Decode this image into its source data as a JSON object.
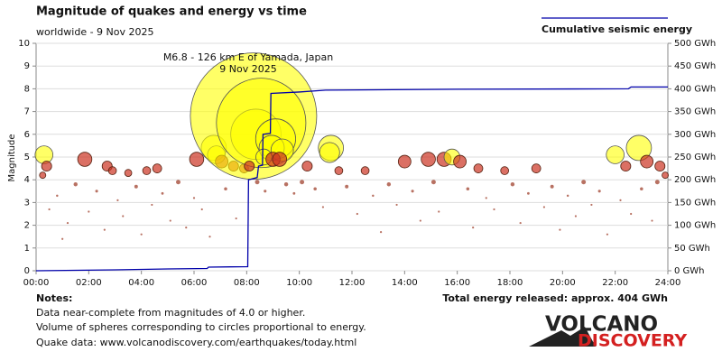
{
  "chart_data": {
    "type": "scatter",
    "title": "Magnitude of quakes and energy vs time",
    "subtitle": "worldwide -  9 Nov 2025",
    "ylabel": "Magnitude",
    "annotation": [
      "M6.8 - 126 km E of Yamada, Japan",
      "9 Nov 2025"
    ],
    "total": "Total energy released: approx. 404 GWh",
    "grid": true,
    "xlim": [
      0,
      24
    ],
    "xticks": [
      {
        "value": 0,
        "label": "00:00"
      },
      {
        "value": 2,
        "label": "02:00"
      },
      {
        "value": 4,
        "label": "04:00"
      },
      {
        "value": 6,
        "label": "06:00"
      },
      {
        "value": 8,
        "label": "08:00"
      },
      {
        "value": 10,
        "label": "10:00"
      },
      {
        "value": 12,
        "label": "12:00"
      },
      {
        "value": 14,
        "label": "14:00"
      },
      {
        "value": 16,
        "label": "16:00"
      },
      {
        "value": 18,
        "label": "18:00"
      },
      {
        "value": 20,
        "label": "20:00"
      },
      {
        "value": 22,
        "label": "22:00"
      },
      {
        "value": 24,
        "label": "24:00"
      }
    ],
    "ylim": [
      0,
      10
    ],
    "yticks": [
      0,
      1,
      2,
      3,
      4,
      5,
      6,
      7,
      8,
      9,
      10
    ],
    "y2lim": [
      0,
      500
    ],
    "y2ticks": [
      {
        "value": 0,
        "label": "0 GWh"
      },
      {
        "value": 50,
        "label": "50 GWh"
      },
      {
        "value": 100,
        "label": "100 GWh"
      },
      {
        "value": 150,
        "label": "150 GWh"
      },
      {
        "value": 200,
        "label": "200 GWh"
      },
      {
        "value": 250,
        "label": "250 GWh"
      },
      {
        "value": 300,
        "label": "300 GWh"
      },
      {
        "value": 350,
        "label": "350 GWh"
      },
      {
        "value": 400,
        "label": "400 GWh"
      },
      {
        "value": 450,
        "label": "450 GWh"
      },
      {
        "value": 500,
        "label": "500 GWh"
      }
    ],
    "x": [
      0.3,
      0.4,
      0.25,
      1.85,
      2.7,
      2.9,
      3.5,
      4.2,
      4.6,
      6.1,
      6.75,
      6.85,
      7.05,
      7.5,
      7.9,
      8.26,
      8.35,
      8.55,
      9.1,
      8.95,
      9.35,
      8.65,
      8.1,
      9.0,
      9.25,
      11.2,
      11.15,
      10.3,
      11.5,
      12.5,
      14.0,
      14.9,
      15.5,
      15.8,
      16.1,
      16.8,
      17.8,
      19.0,
      22.0,
      22.4,
      22.9,
      23.2,
      23.7,
      23.9,
      0.8,
      1.2,
      1.5,
      2.0,
      2.3,
      2.6,
      3.1,
      3.3,
      3.8,
      4.0,
      4.4,
      4.8,
      5.1,
      5.4,
      5.7,
      6.0,
      6.3,
      7.2,
      7.6,
      8.4,
      8.7,
      9.5,
      9.8,
      10.1,
      10.6,
      10.9,
      11.8,
      12.2,
      12.8,
      13.1,
      13.4,
      13.7,
      14.3,
      14.6,
      15.1,
      15.3,
      16.4,
      16.6,
      17.1,
      17.4,
      18.1,
      18.4,
      18.7,
      19.3,
      19.6,
      19.9,
      20.2,
      20.5,
      20.8,
      21.1,
      21.4,
      21.7,
      22.2,
      22.6,
      23.0,
      23.4,
      23.6,
      0.5,
      1.0,
      6.6
    ],
    "values": [
      5.1,
      4.6,
      4.2,
      4.9,
      4.6,
      4.4,
      4.3,
      4.4,
      4.5,
      4.9,
      5.4,
      5.1,
      4.8,
      4.6,
      4.5,
      6.8,
      6.0,
      6.5,
      5.8,
      5.4,
      5.3,
      5.0,
      4.6,
      4.9,
      4.9,
      5.4,
      5.2,
      4.6,
      4.4,
      4.4,
      4.8,
      4.9,
      4.9,
      5.0,
      4.8,
      4.5,
      4.4,
      4.5,
      5.1,
      4.6,
      5.4,
      4.8,
      4.6,
      4.2,
      3.3,
      2.1,
      3.8,
      2.6,
      3.5,
      1.8,
      3.1,
      2.4,
      3.7,
      1.6,
      2.9,
      3.4,
      2.2,
      3.9,
      1.9,
      3.2,
      2.7,
      3.6,
      2.3,
      3.9,
      3.5,
      3.8,
      3.4,
      3.9,
      3.6,
      2.8,
      3.7,
      2.5,
      3.3,
      1.7,
      3.8,
      2.9,
      3.5,
      2.2,
      3.9,
      2.6,
      3.6,
      1.9,
      3.2,
      2.7,
      3.8,
      2.1,
      3.4,
      2.8,
      3.7,
      1.8,
      3.3,
      2.4,
      3.9,
      2.9,
      3.5,
      1.6,
      3.1,
      2.5,
      3.6,
      2.2,
      3.9,
      2.7,
      1.4,
      1.5
    ],
    "series": [
      {
        "name": "Cumulative seismic energy",
        "color": "#0000aa",
        "axis": "y2",
        "x": [
          0,
          3,
          5,
          6.5,
          6.55,
          8.04,
          8.07,
          8.4,
          8.45,
          8.6,
          8.62,
          8.9,
          8.92,
          10.0,
          11.0,
          16.0,
          22.5,
          22.6,
          24
        ],
        "values": [
          0,
          2,
          4,
          5,
          8,
          9,
          200,
          205,
          230,
          232,
          300,
          302,
          390,
          393,
          397,
          399,
          400,
          404,
          404
        ]
      }
    ]
  },
  "notes": {
    "heading": "Notes:",
    "lines": [
      "Data near-complete from magnitudes of 4.0 or higher.",
      "Volume of spheres corresponding to circles proportional to energy.",
      "Quake data: www.volcanodiscovery.com/earthquakes/today.html"
    ]
  },
  "logo": {
    "top": "VOLCANO",
    "bottom": "DISCOVERY"
  }
}
